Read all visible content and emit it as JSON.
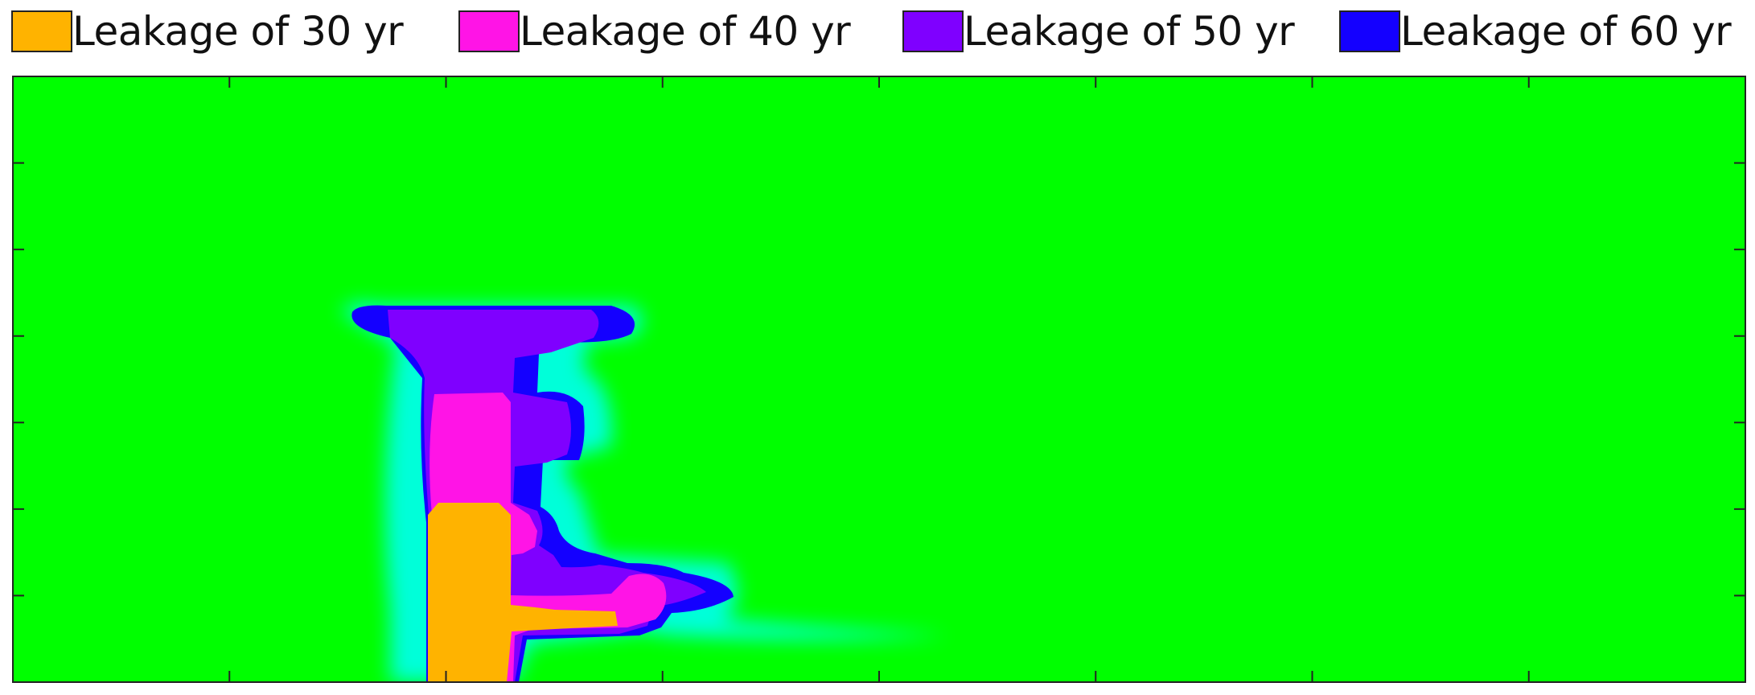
{
  "legend": {
    "items": [
      {
        "label": "Leakage of 30 yr",
        "color": "#FFB300"
      },
      {
        "label": "Leakage of 40 yr",
        "color": "#FF14E6"
      },
      {
        "label": "Leakage of 50 yr",
        "color": "#7F00FF"
      },
      {
        "label": "Leakage of 60 yr",
        "color": "#1400FF"
      }
    ]
  },
  "chart_data": {
    "type": "heatmap",
    "background_color": "#00FF00",
    "halo_color": "#00FFFF",
    "x_ticks": 8,
    "y_ticks": 7,
    "tick_labels_shown": false,
    "series": [
      {
        "name": "Leakage of 30 yr",
        "color": "#FFB300"
      },
      {
        "name": "Leakage of 40 yr",
        "color": "#FF14E6"
      },
      {
        "name": "Leakage of 50 yr",
        "color": "#7F00FF"
      },
      {
        "name": "Leakage of 60 yr",
        "color": "#1400FF"
      }
    ]
  }
}
